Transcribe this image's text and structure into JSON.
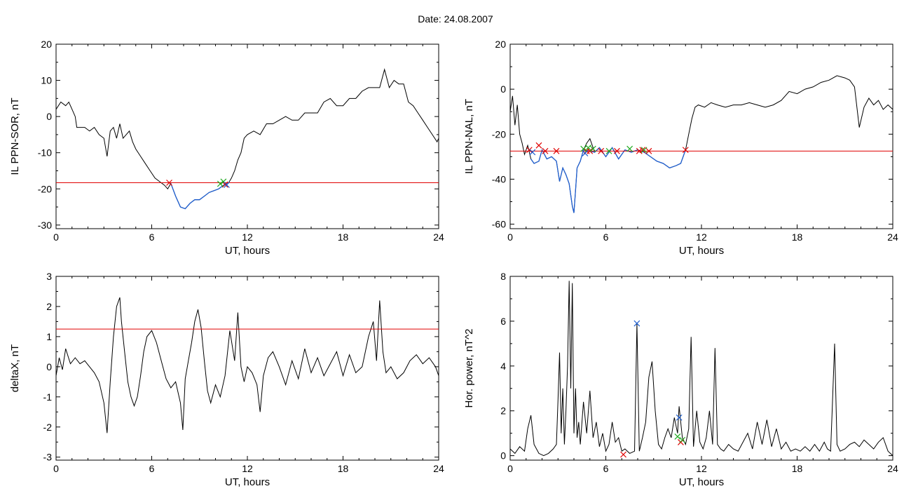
{
  "page": {
    "title": "Date:  24.08.2007"
  },
  "chart_data": [
    {
      "type": "line",
      "xlabel": "UT, hours",
      "ylabel": "IL PPN-SOR, nT",
      "xlim": [
        0,
        24
      ],
      "ylim": [
        -31,
        20
      ],
      "x_ticks": [
        0,
        6,
        12,
        18,
        24
      ],
      "y_ticks": [
        -30,
        -20,
        -10,
        0,
        10,
        20
      ],
      "threshold": -18.3,
      "threshold_color": "#e00000",
      "line_color": "#000000",
      "highlight_color": "#1f5fd0",
      "highlight_range": [
        7.1,
        10.8
      ],
      "series": [
        {
          "x": [
            0,
            0.3,
            0.6,
            0.8,
            1.0,
            1.2,
            1.3,
            1.5,
            1.8,
            2.1,
            2.4,
            2.7,
            3.0,
            3.2,
            3.4,
            3.6,
            3.8,
            4.0,
            4.2,
            4.4,
            4.6,
            4.8,
            5.0,
            5.3,
            5.6,
            5.9,
            6.2,
            6.5,
            6.8,
            7.0,
            7.2,
            7.5,
            7.8,
            8.1,
            8.4,
            8.7,
            9.0,
            9.3,
            9.6,
            9.9,
            10.2,
            10.5,
            10.8,
            11.0,
            11.2,
            11.4,
            11.6,
            11.8,
            12.0,
            12.4,
            12.8,
            13.2,
            13.6,
            14.0,
            14.4,
            14.8,
            15.2,
            15.6,
            16.0,
            16.4,
            16.8,
            17.2,
            17.6,
            18.0,
            18.4,
            18.8,
            19.2,
            19.6,
            20.0,
            20.3,
            20.6,
            20.9,
            21.2,
            21.5,
            21.8,
            22.1,
            22.4,
            22.7,
            23.0,
            23.3,
            23.6,
            23.9,
            24.0
          ],
          "y": [
            2,
            4,
            3,
            4,
            2,
            0,
            -3,
            -3,
            -3,
            -4,
            -3,
            -5,
            -6,
            -11,
            -4,
            -3,
            -6,
            -2,
            -6,
            -5,
            -4,
            -7,
            -9,
            -11,
            -13,
            -15,
            -17,
            -18,
            -19,
            -20,
            -18.5,
            -22,
            -25,
            -25.5,
            -24,
            -23,
            -23,
            -22,
            -21,
            -20.5,
            -20,
            -19,
            -18.5,
            -17,
            -15,
            -12,
            -10,
            -6,
            -5,
            -4,
            -5,
            -2,
            -2,
            -1,
            0,
            -1,
            -1,
            1,
            1,
            1,
            4,
            5,
            3,
            3,
            5,
            5,
            7,
            8,
            8,
            8,
            13,
            8,
            10,
            9,
            9,
            4,
            3,
            1,
            -1,
            -3,
            -5,
            -7,
            -6
          ]
        }
      ],
      "cross_markers": {
        "red": [
          [
            7.1,
            -18.3
          ],
          [
            10.6,
            -18.8
          ]
        ],
        "green": [
          [
            10.3,
            -18.6
          ],
          [
            10.5,
            -18.0
          ]
        ],
        "blue": [
          [
            10.7,
            -18.9
          ]
        ]
      }
    },
    {
      "type": "line",
      "xlabel": "UT, hours",
      "ylabel": "IL PPN-NAL, nT",
      "xlim": [
        0,
        24
      ],
      "ylim": [
        -62,
        20
      ],
      "x_ticks": [
        0,
        6,
        12,
        18,
        24
      ],
      "y_ticks": [
        -60,
        -40,
        -20,
        0,
        20
      ],
      "threshold": -27.5,
      "threshold_color": "#e00000",
      "line_color": "#000000",
      "highlight_color": "#1f5fd0",
      "highlight_range": [
        1.2,
        11.1
      ],
      "series": [
        {
          "x": [
            0,
            0.15,
            0.3,
            0.45,
            0.6,
            0.75,
            0.9,
            1.1,
            1.3,
            1.5,
            1.8,
            2.0,
            2.3,
            2.6,
            2.9,
            3.1,
            3.3,
            3.5,
            3.7,
            3.9,
            4.0,
            4.1,
            4.2,
            4.4,
            4.6,
            4.8,
            5.0,
            5.3,
            5.6,
            6.0,
            6.4,
            6.8,
            7.2,
            7.6,
            8.0,
            8.4,
            8.8,
            9.2,
            9.6,
            10.0,
            10.4,
            10.7,
            11.0,
            11.2,
            11.4,
            11.6,
            11.8,
            12.2,
            12.6,
            13.0,
            13.5,
            14.0,
            14.5,
            15.0,
            15.5,
            16.0,
            16.5,
            17.0,
            17.5,
            18.0,
            18.5,
            19.0,
            19.5,
            20.0,
            20.5,
            21.0,
            21.3,
            21.6,
            21.9,
            22.2,
            22.5,
            22.8,
            23.1,
            23.4,
            23.7,
            24.0
          ],
          "y": [
            -10,
            -3,
            -16,
            -7,
            -20,
            -24,
            -29,
            -25,
            -31,
            -33,
            -32,
            -27,
            -31,
            -30,
            -32,
            -41,
            -35,
            -38,
            -42,
            -52,
            -55,
            -45,
            -35,
            -32,
            -27,
            -24,
            -22,
            -28,
            -26,
            -30,
            -26,
            -31,
            -27,
            -28,
            -27,
            -28,
            -30,
            -32,
            -33,
            -35,
            -34,
            -33,
            -27,
            -20,
            -13,
            -8,
            -7,
            -8,
            -6,
            -7,
            -8,
            -7,
            -7,
            -6,
            -7,
            -8,
            -7,
            -5,
            -1,
            -2,
            0,
            1,
            3,
            4,
            6,
            5,
            4,
            1,
            -17,
            -8,
            -4,
            -7,
            -5,
            -9,
            -7,
            -9
          ]
        }
      ],
      "cross_markers": {
        "red": [
          [
            1.2,
            -27.0
          ],
          [
            1.8,
            -25.0
          ],
          [
            2.2,
            -27.5
          ],
          [
            2.9,
            -27.5
          ],
          [
            4.8,
            -27.5
          ],
          [
            5.0,
            -27.5
          ],
          [
            5.7,
            -27.5
          ],
          [
            6.7,
            -27.5
          ],
          [
            8.1,
            -27.5
          ],
          [
            8.3,
            -27.0
          ],
          [
            8.7,
            -27.5
          ],
          [
            11.0,
            -27.0
          ]
        ],
        "green": [
          [
            4.6,
            -26.5
          ],
          [
            4.9,
            -26.0
          ],
          [
            5.2,
            -26.5
          ],
          [
            6.2,
            -27.5
          ],
          [
            7.5,
            -26.5
          ],
          [
            8.4,
            -27.0
          ]
        ],
        "blue": [
          [
            1.4,
            -28.0
          ],
          [
            4.7,
            -28.5
          ]
        ]
      }
    },
    {
      "type": "line",
      "xlabel": "UT, hours",
      "ylabel": "deltaX, nT",
      "xlim": [
        0,
        24
      ],
      "ylim": [
        -3.1,
        3
      ],
      "x_ticks": [
        0,
        6,
        12,
        18,
        24
      ],
      "y_ticks": [
        -3,
        -2,
        -1,
        0,
        1,
        2,
        3
      ],
      "threshold": 1.25,
      "threshold_color": "#e00000",
      "line_color": "#000000",
      "series": [
        {
          "x": [
            0,
            0.2,
            0.4,
            0.6,
            0.9,
            1.2,
            1.5,
            1.8,
            2.1,
            2.4,
            2.7,
            3.0,
            3.2,
            3.4,
            3.6,
            3.8,
            4.0,
            4.1,
            4.3,
            4.5,
            4.7,
            4.9,
            5.1,
            5.3,
            5.5,
            5.7,
            6.0,
            6.3,
            6.6,
            6.9,
            7.2,
            7.5,
            7.8,
            7.95,
            8.1,
            8.3,
            8.5,
            8.7,
            8.9,
            9.1,
            9.3,
            9.5,
            9.7,
            10.0,
            10.3,
            10.6,
            10.9,
            11.2,
            11.4,
            11.6,
            11.8,
            12.0,
            12.3,
            12.6,
            12.8,
            13.0,
            13.3,
            13.6,
            14.0,
            14.4,
            14.8,
            15.2,
            15.6,
            16.0,
            16.4,
            16.8,
            17.2,
            17.6,
            18.0,
            18.4,
            18.8,
            19.2,
            19.6,
            19.9,
            20.1,
            20.3,
            20.5,
            20.7,
            21.0,
            21.4,
            21.8,
            22.2,
            22.6,
            23.0,
            23.4,
            23.8,
            24.0
          ],
          "y": [
            -0.3,
            0.3,
            -0.1,
            0.6,
            0.1,
            0.3,
            0.1,
            0.2,
            0.0,
            -0.2,
            -0.5,
            -1.2,
            -2.2,
            -0.5,
            1.0,
            2.0,
            2.3,
            1.5,
            0.5,
            -0.5,
            -1.0,
            -1.3,
            -1.0,
            -0.3,
            0.5,
            1.0,
            1.2,
            0.8,
            0.2,
            -0.4,
            -0.7,
            -0.5,
            -1.2,
            -2.1,
            -0.4,
            0.2,
            0.8,
            1.5,
            1.9,
            1.3,
            0.2,
            -0.8,
            -1.2,
            -0.6,
            -1.0,
            -0.3,
            1.2,
            0.2,
            1.8,
            0.0,
            -0.5,
            0.0,
            -0.2,
            -0.6,
            -1.5,
            -0.3,
            0.3,
            0.5,
            0.0,
            -0.6,
            0.2,
            -0.4,
            0.6,
            -0.2,
            0.3,
            -0.3,
            0.1,
            0.5,
            -0.3,
            0.4,
            -0.2,
            0.0,
            1.0,
            1.5,
            0.2,
            2.2,
            0.5,
            -0.2,
            0.0,
            -0.4,
            -0.2,
            0.2,
            0.4,
            0.1,
            0.3,
            0.0,
            -0.3
          ]
        }
      ]
    },
    {
      "type": "line",
      "xlabel": "UT, hours",
      "ylabel": "Hor. power, nT^2",
      "xlim": [
        0,
        24
      ],
      "ylim": [
        -0.2,
        8
      ],
      "x_ticks": [
        0,
        6,
        12,
        18,
        24
      ],
      "y_ticks": [
        0,
        2,
        4,
        6,
        8
      ],
      "line_color": "#000000",
      "series": [
        {
          "x": [
            0,
            0.3,
            0.6,
            0.9,
            1.1,
            1.3,
            1.5,
            1.8,
            2.1,
            2.4,
            2.7,
            2.9,
            3.0,
            3.1,
            3.2,
            3.3,
            3.4,
            3.5,
            3.6,
            3.7,
            3.8,
            3.9,
            4.0,
            4.1,
            4.2,
            4.3,
            4.4,
            4.6,
            4.8,
            5.0,
            5.2,
            5.4,
            5.6,
            5.8,
            6.0,
            6.2,
            6.4,
            6.6,
            6.8,
            7.0,
            7.2,
            7.5,
            7.8,
            7.95,
            8.1,
            8.3,
            8.5,
            8.7,
            8.9,
            9.1,
            9.3,
            9.5,
            9.7,
            9.9,
            10.1,
            10.3,
            10.5,
            10.6,
            10.8,
            11.0,
            11.2,
            11.35,
            11.5,
            11.7,
            11.9,
            12.1,
            12.3,
            12.5,
            12.7,
            12.85,
            13.0,
            13.2,
            13.4,
            13.7,
            14.0,
            14.3,
            14.6,
            14.9,
            15.2,
            15.5,
            15.8,
            16.1,
            16.4,
            16.7,
            17.0,
            17.3,
            17.6,
            17.9,
            18.2,
            18.5,
            18.8,
            19.1,
            19.4,
            19.7,
            19.9,
            20.1,
            20.2,
            20.35,
            20.5,
            20.7,
            21.0,
            21.3,
            21.6,
            21.9,
            22.2,
            22.5,
            22.8,
            23.1,
            23.4,
            23.7,
            24.0
          ],
          "y": [
            0.3,
            0.1,
            0.4,
            0.2,
            1.2,
            1.8,
            0.5,
            0.1,
            0.0,
            0.1,
            0.3,
            0.5,
            2.5,
            4.6,
            1.0,
            3.0,
            0.5,
            2.0,
            4.0,
            7.8,
            3.0,
            7.7,
            1.0,
            3.0,
            0.8,
            1.5,
            0.5,
            2.4,
            1.0,
            2.9,
            0.8,
            1.5,
            0.4,
            1.0,
            0.2,
            0.5,
            1.5,
            0.6,
            0.8,
            0.2,
            0.3,
            0.1,
            0.2,
            5.9,
            0.2,
            0.8,
            1.5,
            3.5,
            4.2,
            2.0,
            0.5,
            0.3,
            0.8,
            1.2,
            0.8,
            1.7,
            1.0,
            2.2,
            0.8,
            0.5,
            1.2,
            5.3,
            0.4,
            2.0,
            0.6,
            0.3,
            0.8,
            2.0,
            0.5,
            4.8,
            0.5,
            0.3,
            0.2,
            0.5,
            0.3,
            0.2,
            0.6,
            1.0,
            0.3,
            1.5,
            0.5,
            1.6,
            0.4,
            1.2,
            0.3,
            0.6,
            0.2,
            0.3,
            0.2,
            0.4,
            0.2,
            0.5,
            0.2,
            0.6,
            0.3,
            0.2,
            2.0,
            5.0,
            0.5,
            0.2,
            0.3,
            0.5,
            0.6,
            0.4,
            0.7,
            0.5,
            0.3,
            0.6,
            0.8,
            0.2,
            0.0
          ]
        }
      ],
      "cross_markers": {
        "red": [
          [
            7.1,
            0.05
          ],
          [
            10.7,
            0.6
          ]
        ],
        "green": [
          [
            10.5,
            0.85
          ],
          [
            10.8,
            0.7
          ]
        ],
        "blue": [
          [
            7.95,
            5.9
          ],
          [
            10.6,
            1.7
          ]
        ]
      }
    }
  ]
}
